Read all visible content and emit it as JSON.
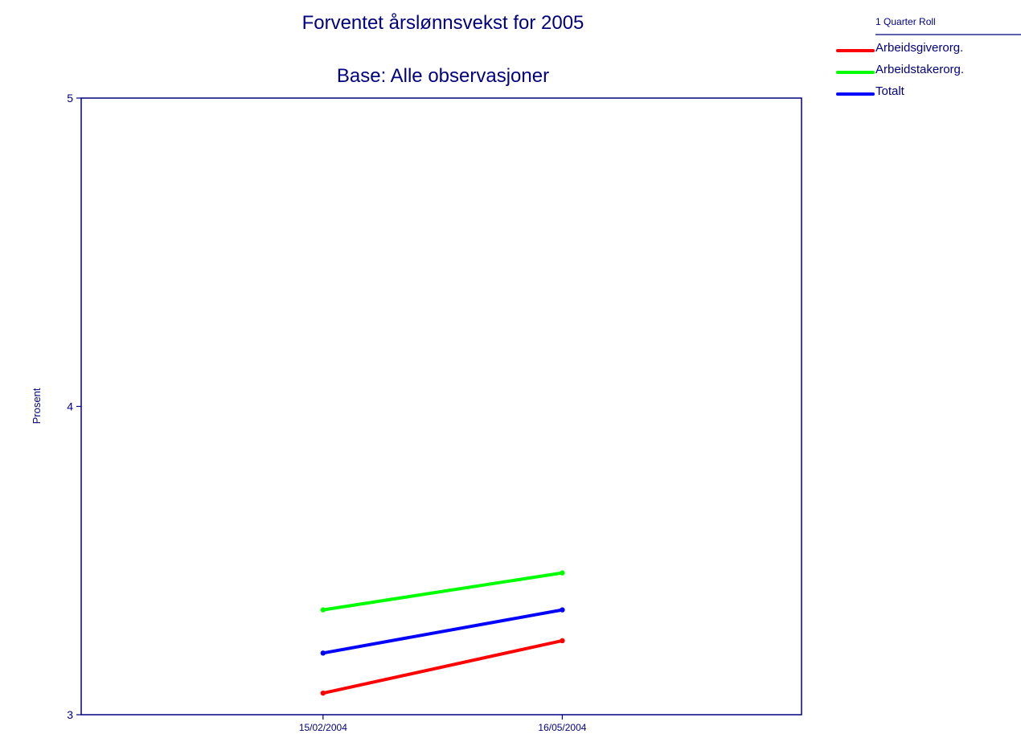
{
  "chart_data": {
    "type": "line",
    "title": "Forventet årslønnsvekst for 2005",
    "subtitle": "Base: Alle observasjoner",
    "xlabel": "",
    "ylabel": "Prosent",
    "x": [
      "15/02/2004",
      "16/05/2004"
    ],
    "xlim": [
      "15/11/2003",
      "15/08/2004"
    ],
    "ylim": [
      3,
      5
    ],
    "yticks": [
      3,
      4,
      5
    ],
    "grid": false,
    "legend_title": "1 Quarter Roll",
    "legend_position": "top-right",
    "series": [
      {
        "name": "Arbeidsgiverorg.",
        "color": "#ff0000",
        "values": [
          3.07,
          3.24
        ]
      },
      {
        "name": "Arbeidstakerorg.",
        "color": "#00ff00",
        "values": [
          3.34,
          3.46
        ]
      },
      {
        "name": "Totalt",
        "color": "#0000ff",
        "values": [
          3.2,
          3.34
        ]
      }
    ]
  }
}
